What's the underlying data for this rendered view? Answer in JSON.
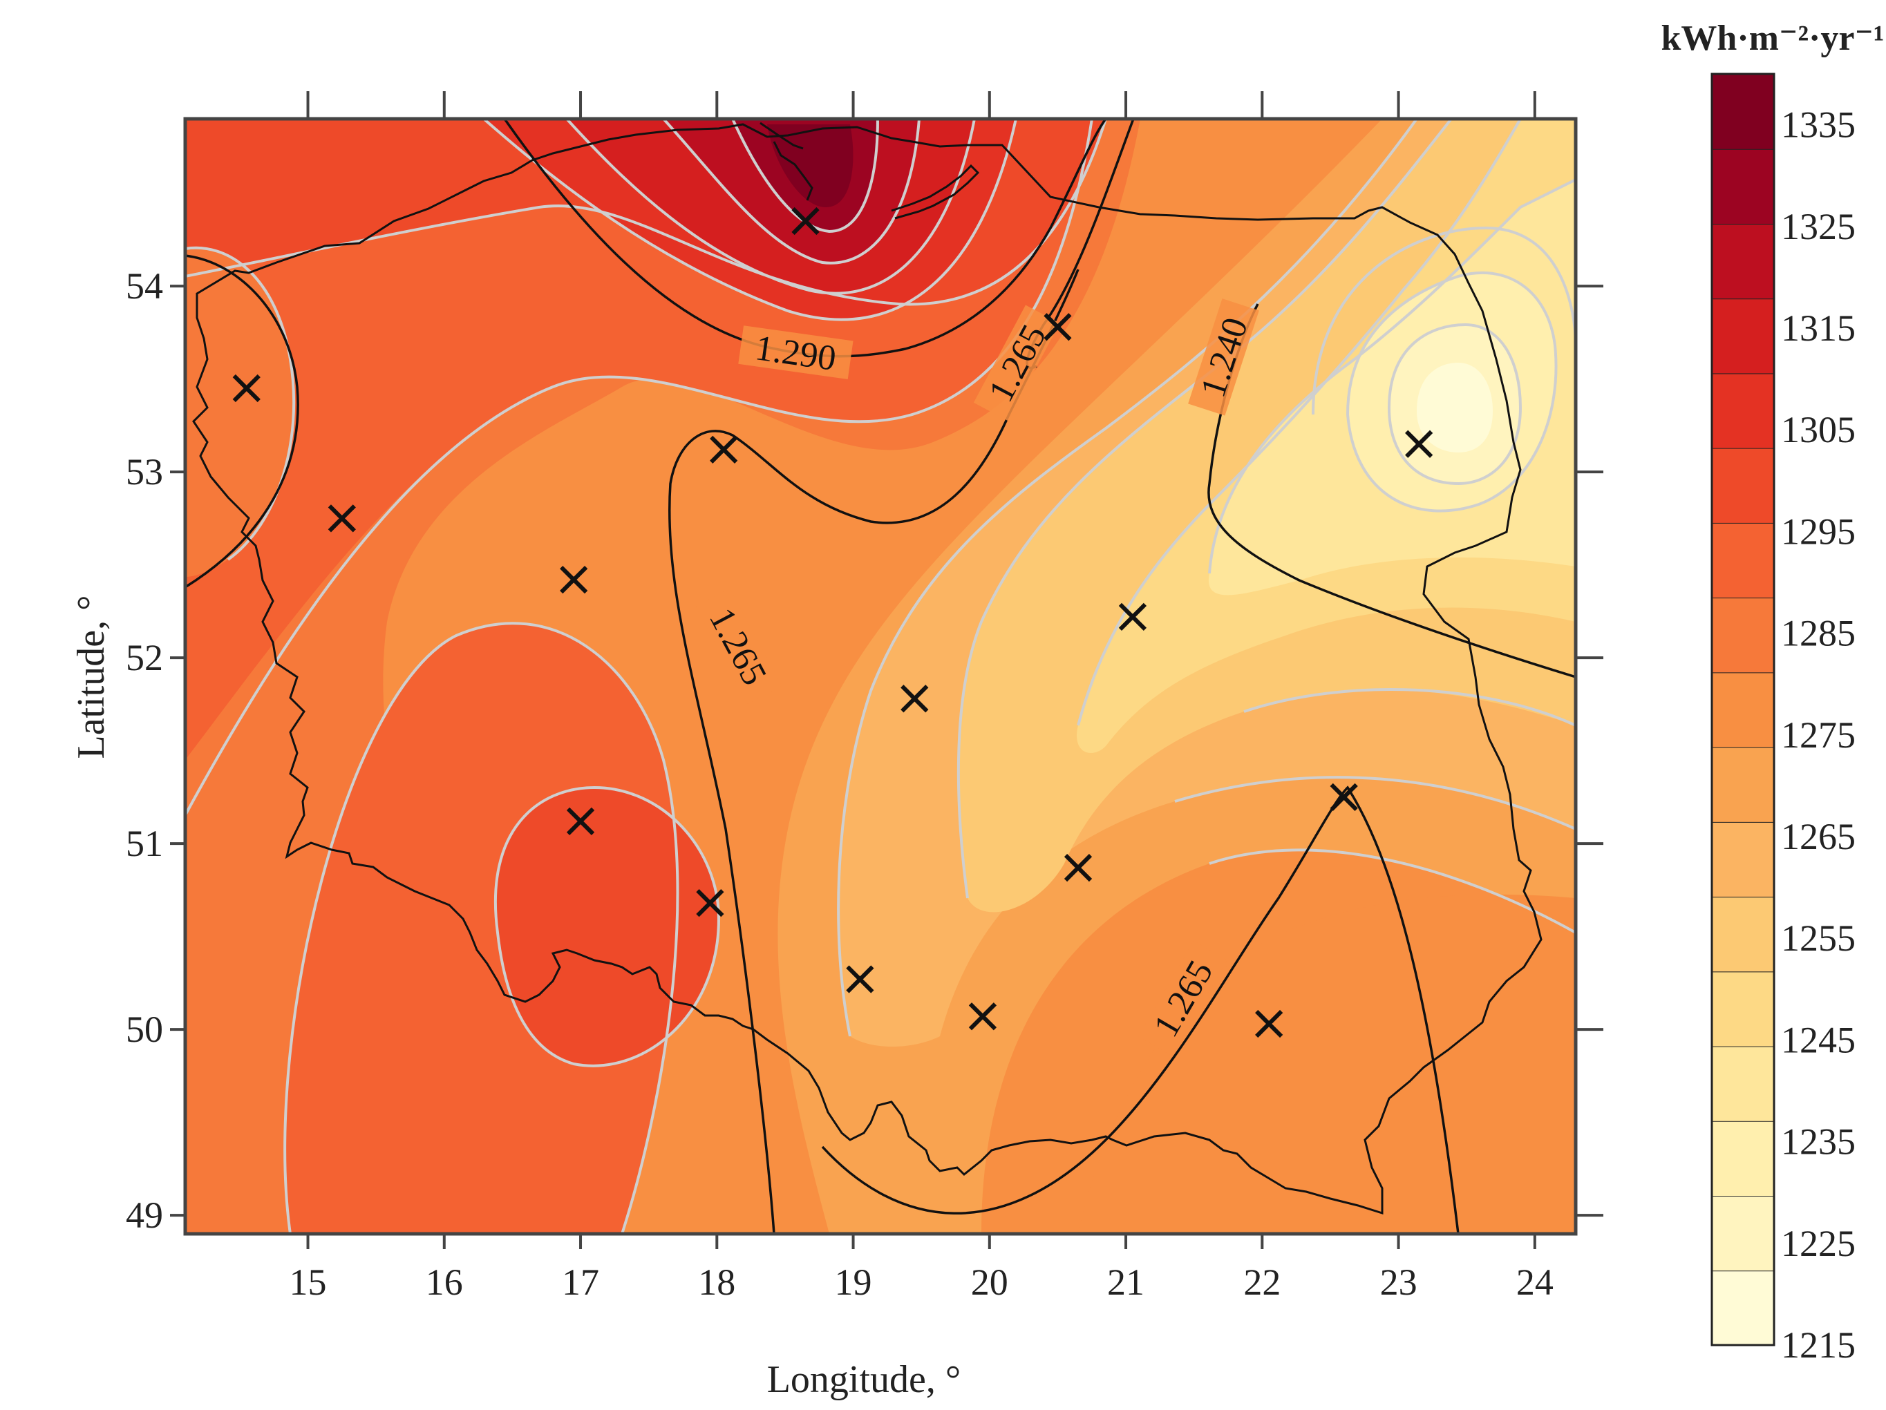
{
  "map": {
    "xlabel": "Longitude, °",
    "ylabel": "Latitude, °",
    "x_ticks": [
      "15",
      "16",
      "17",
      "18",
      "19",
      "20",
      "21",
      "22",
      "23",
      "24"
    ],
    "y_ticks": [
      "49",
      "50",
      "51",
      "52",
      "53",
      "54"
    ],
    "xlim": [
      14.1,
      24.3
    ],
    "ylim": [
      48.9,
      54.9
    ],
    "contour_labels": [
      "1.290",
      "1.265",
      "1.265",
      "1.240",
      "1.265"
    ]
  },
  "colorbar": {
    "title": "kWh·m⁻²·yr⁻¹",
    "labels": [
      "1335",
      "1325",
      "1315",
      "1305",
      "1295",
      "1285",
      "1275",
      "1265",
      "1255",
      "1245",
      "1235",
      "1225",
      "1215"
    ],
    "min": 1215,
    "max": 1340,
    "colors": [
      "#fffbd6",
      "#fff4bf",
      "#ffefae",
      "#fee69b",
      "#fdd985",
      "#fcc973",
      "#fbb462",
      "#f9a350",
      "#f88f42",
      "#f6793a",
      "#f46232",
      "#ee4a29",
      "#e43223",
      "#d51f1f",
      "#bd0f20",
      "#9c0422",
      "#800020"
    ]
  },
  "chart_data": {
    "type": "contour-map",
    "stations": [
      {
        "lon": 14.55,
        "lat": 53.45
      },
      {
        "lon": 15.25,
        "lat": 52.75
      },
      {
        "lon": 16.95,
        "lat": 52.42
      },
      {
        "lon": 17.0,
        "lat": 51.12
      },
      {
        "lon": 17.95,
        "lat": 50.68
      },
      {
        "lon": 18.05,
        "lat": 53.12
      },
      {
        "lon": 18.65,
        "lat": 54.35
      },
      {
        "lon": 19.05,
        "lat": 50.27
      },
      {
        "lon": 19.45,
        "lat": 51.78
      },
      {
        "lon": 19.95,
        "lat": 50.07
      },
      {
        "lon": 20.5,
        "lat": 53.78
      },
      {
        "lon": 20.65,
        "lat": 50.87
      },
      {
        "lon": 21.05,
        "lat": 52.22
      },
      {
        "lon": 22.05,
        "lat": 50.03
      },
      {
        "lon": 22.6,
        "lat": 51.25
      },
      {
        "lon": 23.15,
        "lat": 53.15
      }
    ],
    "contours_labeled": [
      "1.290",
      "1.265",
      "1.265",
      "1.240",
      "1.265"
    ],
    "value_range": [
      1215,
      1340
    ],
    "unit": "kWh·m⁻²·yr⁻¹"
  }
}
